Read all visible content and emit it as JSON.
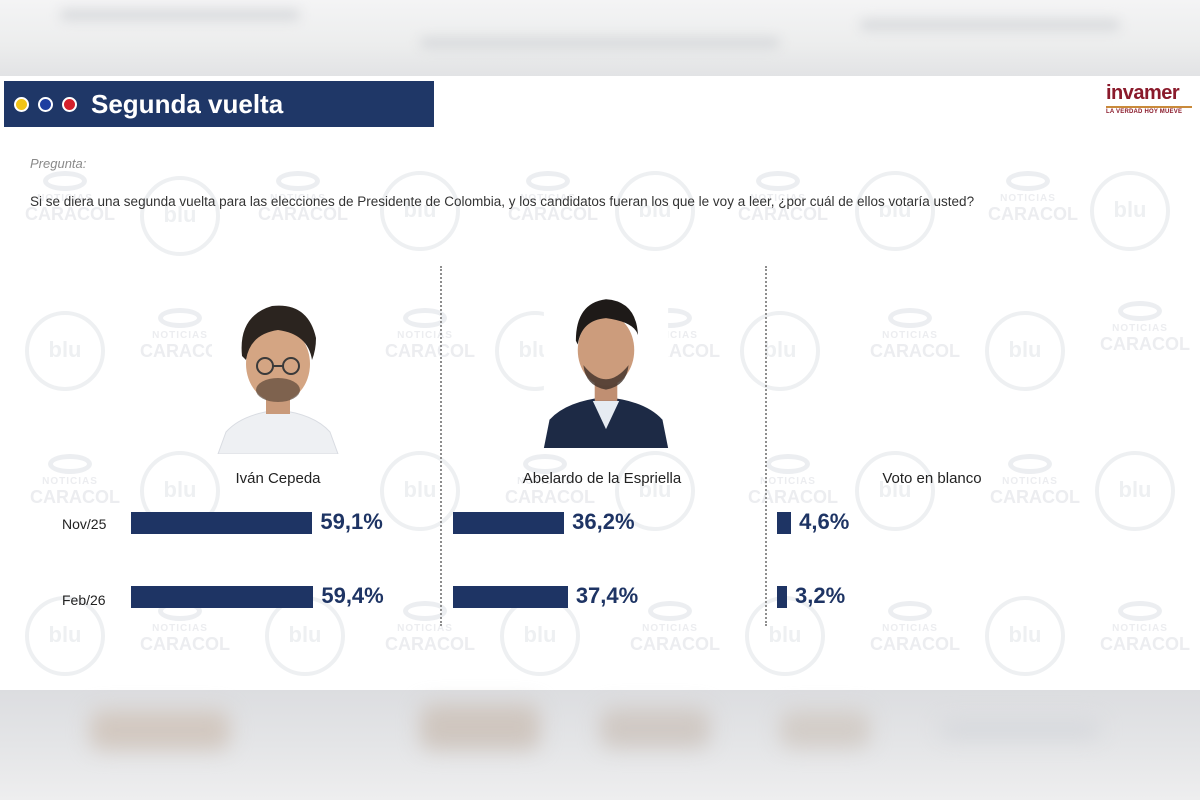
{
  "slide": {
    "title": "Segunda vuelta",
    "logo": {
      "name": "invamer",
      "tagline": "LA VERDAD HOY MUEVE"
    },
    "question_label": "Pregunta:",
    "question": "Si se diera una segunda vuelta para las elecciones de Presidente de Colombia, y los candidatos fueran los que le voy a leer, ¿por cuál de ellos votaría usted?",
    "watermark": {
      "blu": "blu",
      "noticias": "NOTICIAS",
      "caracol": "CARACOL"
    }
  },
  "colors": {
    "title_bar": "#1f3767",
    "bar": "#1e3464",
    "dot_yellow": "#f2c417",
    "dot_blue": "#1f3ea0",
    "dot_red": "#d4202c"
  },
  "chart_data": {
    "type": "bar",
    "orientation": "horizontal",
    "title": "Segunda vuelta",
    "categories": [
      "Iván Cepeda",
      "Abelardo de la Espriella",
      "Voto en blanco"
    ],
    "series": [
      {
        "name": "Nov/25",
        "values": [
          59.1,
          36.2,
          4.6
        ],
        "labels": [
          "59,1%",
          "36,2%",
          "4,6%"
        ]
      },
      {
        "name": "Feb/26",
        "values": [
          59.4,
          37.4,
          3.2
        ],
        "labels": [
          "59,4%",
          "37,4%",
          "3,2%"
        ]
      }
    ],
    "xlim": [
      0,
      100
    ],
    "grid": false,
    "legend": "none"
  }
}
